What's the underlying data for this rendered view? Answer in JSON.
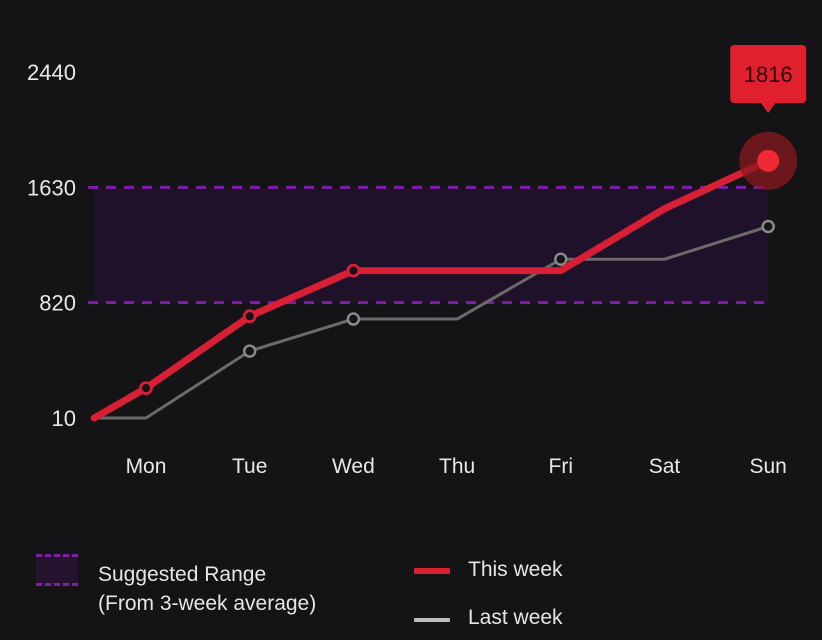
{
  "chart_data": {
    "type": "line",
    "categories": [
      "Mon",
      "Tue",
      "Wed",
      "Thu",
      "Fri",
      "Sat",
      "Sun"
    ],
    "yticks": [
      10,
      820,
      1630,
      2440
    ],
    "ylim": [
      10,
      2440
    ],
    "series": [
      {
        "name": "This week",
        "x": [
          -0.5,
          0,
          1,
          2,
          3,
          4,
          5,
          6
        ],
        "values": [
          10,
          220,
          725,
          1045,
          1045,
          1045,
          1480,
          1816
        ],
        "color": "#d81f36"
      },
      {
        "name": "Last week",
        "x": [
          -0.5,
          0,
          1,
          2,
          3,
          4,
          5,
          6
        ],
        "values": [
          10,
          10,
          480,
          705,
          705,
          1125,
          1125,
          1355
        ],
        "color": "#6b6a6b"
      }
    ],
    "suggested_range": {
      "low": 820,
      "high": 1630,
      "color": "#7b1fa6"
    },
    "callout": {
      "value": "1816",
      "color": "#e0202d"
    },
    "legend": {
      "range_label_1": "Suggested Range",
      "range_label_2": "(From 3-week average)",
      "this_week": "This week",
      "last_week": "Last week",
      "this_week_color": "#d81f36",
      "last_week_color": "#bcbcbc"
    }
  }
}
